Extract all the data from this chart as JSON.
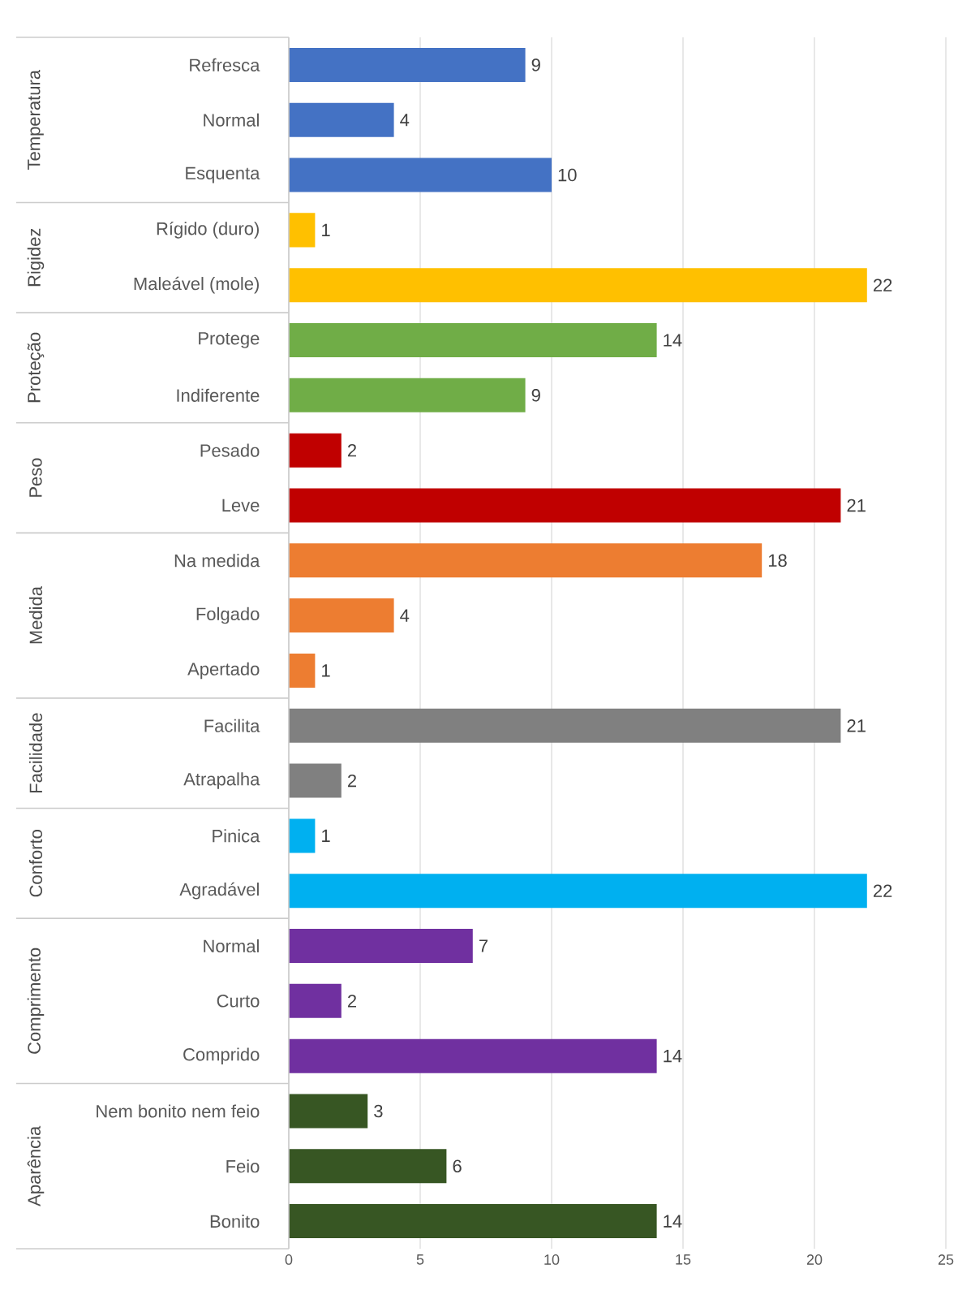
{
  "chart_data": {
    "type": "bar",
    "orientation": "horizontal",
    "categories": [
      "Refresca",
      "Normal",
      "Esquenta",
      "Rígido (duro)",
      "Maleável (mole)",
      "Protege",
      "Indiferente",
      "Pesado",
      "Leve",
      "Na medida",
      "Folgado",
      "Apertado",
      "Facilita",
      "Atrapalha",
      "Pinica",
      "Agradável",
      "Normal",
      "Curto",
      "Comprido",
      "Nem bonito nem feio",
      "Feio",
      "Bonito"
    ],
    "values": [
      9,
      4,
      10,
      1,
      22,
      14,
      9,
      2,
      21,
      18,
      4,
      1,
      21,
      2,
      1,
      22,
      7,
      2,
      14,
      3,
      6,
      14
    ],
    "colors": [
      "#4472c4",
      "#4472c4",
      "#4472c4",
      "#ffc000",
      "#ffc000",
      "#70ad47",
      "#70ad47",
      "#c00000",
      "#c00000",
      "#ed7d31",
      "#ed7d31",
      "#ed7d31",
      "#808080",
      "#808080",
      "#00b0f0",
      "#00b0f0",
      "#7030a0",
      "#7030a0",
      "#7030a0",
      "#375623",
      "#375623",
      "#375623"
    ],
    "annotations": [
      "Temperatura",
      "Rigidez",
      "Proteção",
      "Peso",
      "Medida",
      "Facilidade",
      "Conforto",
      "Comprimento",
      "Aparência"
    ],
    "xlim": [
      0,
      25
    ],
    "xticks": [
      0,
      5,
      10,
      15,
      20,
      25
    ],
    "grid": "x",
    "data_labels": true
  }
}
